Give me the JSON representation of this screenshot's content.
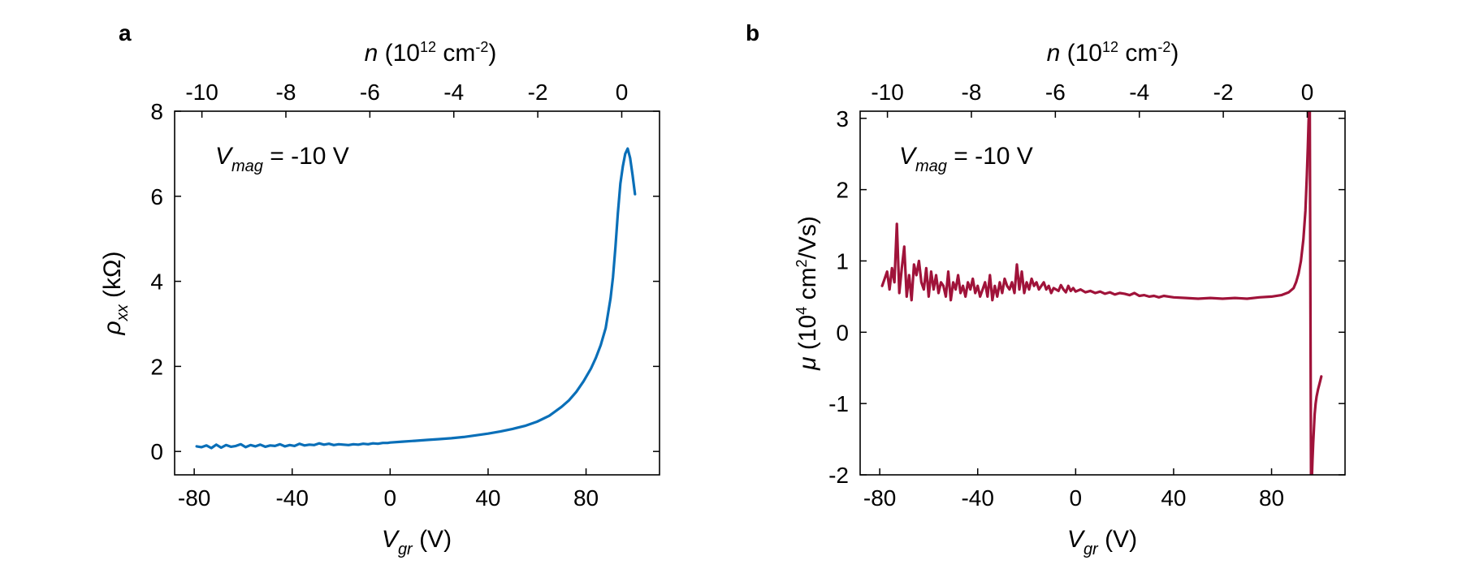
{
  "panels": [
    {
      "label": "a",
      "annotation": {
        "var": "V",
        "sub": "mag",
        "rest": " = -10 V"
      }
    },
    {
      "label": "b",
      "annotation": {
        "var": "V",
        "sub": "mag",
        "rest": " = -10 V"
      }
    }
  ],
  "colors": {
    "panel_a_line": "#0a6fb8",
    "panel_b_line": "#a0133a"
  },
  "chart_data": [
    {
      "type": "line",
      "title": "",
      "xlabel": {
        "var": "V",
        "sub": "gr",
        "unit": " (V)"
      },
      "ylabel": {
        "var": "ρ",
        "sub": "xx",
        "unit": " (kΩ)"
      },
      "top_xlabel": {
        "var": "n",
        "unit_open": " (10",
        "sup": "12",
        "unit_mid": " cm",
        "sup2": "-2",
        "unit_close": ")"
      },
      "xlim": [
        -88,
        110
      ],
      "ylim": [
        -0.55,
        8
      ],
      "xticks": [
        -80,
        -40,
        0,
        40,
        80
      ],
      "yticks": [
        0,
        2,
        4,
        6,
        8
      ],
      "top_xlim": [
        -10.65,
        0.9
      ],
      "top_xticks": [
        -10,
        -8,
        -6,
        -4,
        -2,
        0
      ],
      "series": [
        {
          "x": [
            -79,
            -77,
            -75,
            -73,
            -71,
            -69,
            -67,
            -65,
            -63,
            -61,
            -59,
            -57,
            -55,
            -53,
            -51,
            -49,
            -47,
            -45,
            -43,
            -41,
            -39,
            -37,
            -35,
            -33,
            -31,
            -29,
            -27,
            -25,
            -23,
            -21,
            -19,
            -17,
            -15,
            -13,
            -11,
            -9,
            -7,
            -5,
            -3,
            -1,
            0,
            5,
            10,
            15,
            20,
            25,
            30,
            35,
            40,
            45,
            50,
            55,
            60,
            65,
            70,
            73,
            76,
            79,
            82,
            84,
            86,
            88,
            90,
            91,
            92,
            93,
            94,
            95,
            96,
            97,
            98,
            99,
            100
          ],
          "y": [
            0.12,
            0.1,
            0.14,
            0.08,
            0.16,
            0.09,
            0.15,
            0.11,
            0.13,
            0.17,
            0.1,
            0.15,
            0.12,
            0.16,
            0.11,
            0.14,
            0.13,
            0.17,
            0.12,
            0.15,
            0.13,
            0.18,
            0.14,
            0.16,
            0.15,
            0.19,
            0.16,
            0.18,
            0.15,
            0.17,
            0.16,
            0.15,
            0.17,
            0.16,
            0.18,
            0.17,
            0.19,
            0.18,
            0.2,
            0.2,
            0.21,
            0.23,
            0.25,
            0.27,
            0.29,
            0.31,
            0.34,
            0.38,
            0.42,
            0.47,
            0.53,
            0.6,
            0.7,
            0.84,
            1.05,
            1.2,
            1.4,
            1.65,
            1.95,
            2.2,
            2.5,
            2.9,
            3.6,
            4.1,
            4.8,
            5.6,
            6.3,
            6.7,
            7.0,
            7.12,
            6.9,
            6.5,
            6.05
          ]
        }
      ]
    },
    {
      "type": "line",
      "title": "",
      "xlabel": {
        "var": "V",
        "sub": "gr",
        "unit": " (V)"
      },
      "ylabel": {
        "var": "μ",
        "unit_open": " (10",
        "sup": "4",
        "unit_mid": " cm",
        "sup2": "2",
        "unit_close": "/Vs)"
      },
      "top_xlabel": {
        "var": "n",
        "unit_open": " (10",
        "sup": "12",
        "unit_mid": " cm",
        "sup2": "-2",
        "unit_close": ")"
      },
      "xlim": [
        -88,
        110
      ],
      "ylim": [
        -2,
        3.1
      ],
      "xticks": [
        -80,
        -40,
        0,
        40,
        80
      ],
      "yticks": [
        -2,
        -1,
        0,
        1,
        2,
        3
      ],
      "top_xlim": [
        -10.65,
        0.9
      ],
      "top_xticks": [
        -10,
        -8,
        -6,
        -4,
        -2,
        0
      ],
      "series": [
        {
          "x": [
            -79,
            -78,
            -77,
            -76,
            -75,
            -74,
            -73,
            -72,
            -71,
            -70,
            -69,
            -68,
            -67,
            -66,
            -65,
            -64,
            -63,
            -62,
            -61,
            -60,
            -59,
            -58,
            -57,
            -56,
            -55,
            -54,
            -53,
            -52,
            -51,
            -50,
            -49,
            -48,
            -47,
            -46,
            -45,
            -44,
            -43,
            -42,
            -41,
            -40,
            -39,
            -38,
            -37,
            -36,
            -35,
            -34,
            -33,
            -32,
            -31,
            -30,
            -29,
            -28,
            -27,
            -26,
            -25,
            -24,
            -23,
            -22,
            -21,
            -20,
            -19,
            -18,
            -17,
            -16,
            -15,
            -14,
            -13,
            -12,
            -11,
            -10,
            -9,
            -8,
            -7,
            -6,
            -5,
            -4,
            -3,
            -2,
            -1,
            0,
            2,
            4,
            6,
            8,
            10,
            12,
            14,
            16,
            18,
            20,
            22,
            24,
            26,
            28,
            30,
            32,
            34,
            36,
            38,
            40,
            45,
            50,
            55,
            60,
            65,
            70,
            75,
            80,
            84,
            87,
            89,
            90,
            91,
            92,
            93,
            93.8,
            94.4,
            94.8,
            95.1,
            95.3
          ],
          "y": [
            0.65,
            0.75,
            0.85,
            0.6,
            0.9,
            0.7,
            1.52,
            0.55,
            0.9,
            1.2,
            0.5,
            0.8,
            0.45,
            0.95,
            0.8,
            1.0,
            0.7,
            0.6,
            0.9,
            0.5,
            0.85,
            0.6,
            0.8,
            0.55,
            0.7,
            0.65,
            0.5,
            0.85,
            0.45,
            0.7,
            0.6,
            0.8,
            0.55,
            0.65,
            0.5,
            0.7,
            0.6,
            0.75,
            0.55,
            0.65,
            0.5,
            0.6,
            0.7,
            0.5,
            0.8,
            0.45,
            0.65,
            0.5,
            0.7,
            0.55,
            0.75,
            0.65,
            0.6,
            0.7,
            0.55,
            0.95,
            0.6,
            0.85,
            0.55,
            0.7,
            0.6,
            0.75,
            0.65,
            0.7,
            0.6,
            0.65,
            0.7,
            0.6,
            0.65,
            0.55,
            0.62,
            0.6,
            0.58,
            0.66,
            0.6,
            0.56,
            0.65,
            0.58,
            0.62,
            0.57,
            0.6,
            0.56,
            0.58,
            0.55,
            0.57,
            0.54,
            0.56,
            0.53,
            0.55,
            0.54,
            0.52,
            0.55,
            0.51,
            0.52,
            0.5,
            0.51,
            0.49,
            0.51,
            0.5,
            0.49,
            0.48,
            0.47,
            0.48,
            0.47,
            0.48,
            0.47,
            0.49,
            0.5,
            0.52,
            0.56,
            0.62,
            0.7,
            0.82,
            1.0,
            1.3,
            1.7,
            2.2,
            2.6,
            2.95,
            3.1
          ]
        },
        {
          "x": [
            95.6,
            96.1,
            96.5,
            96.7,
            97.0,
            97.3,
            97.6,
            98.0,
            98.4,
            99.0,
            99.6,
            100.3
          ],
          "y": [
            3.1,
            -2.0,
            -2.0,
            -1.8,
            -1.55,
            -1.35,
            -1.15,
            -1.0,
            -0.9,
            -0.8,
            -0.72,
            -0.62
          ]
        }
      ]
    }
  ]
}
